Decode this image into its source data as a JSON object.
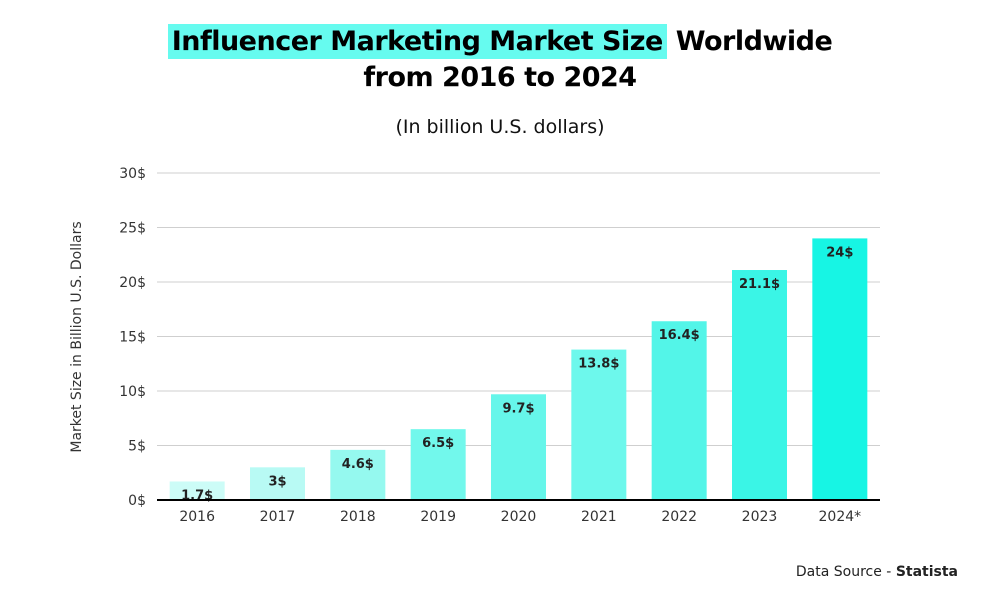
{
  "title_highlight": "Influencer Marketing Market Size",
  "title_rest": "Worldwide",
  "title_line2": "from 2016 to 2024",
  "subtitle": "(In billion U.S. dollars)",
  "source_label": "Data Source - ",
  "source_name": "Statista",
  "colors": {
    "highlight": "#66fbef",
    "bars": [
      "#ccfcf7",
      "#b8faf4",
      "#95f9ef",
      "#72f8ec",
      "#66f6ea",
      "#6df8ec",
      "#53f5e8",
      "#3af5e6",
      "#17f5e4"
    ]
  },
  "chart_data": {
    "type": "bar",
    "categories": [
      "2016",
      "2017",
      "2018",
      "2019",
      "2020",
      "2021",
      "2022",
      "2023",
      "2024*"
    ],
    "values": [
      1.7,
      3,
      4.6,
      6.5,
      9.7,
      13.8,
      16.4,
      21.1,
      24
    ],
    "data_labels": [
      "1.7$",
      "3$",
      "4.6$",
      "6.5$",
      "9.7$",
      "13.8$",
      "16.4$",
      "21.1$",
      "24$"
    ],
    "ylabel": "Market Size in Billion U.S. Dollars",
    "xlabel": "",
    "ylim": [
      0,
      30
    ],
    "yticks": [
      "0$",
      "5$",
      "10$",
      "15$",
      "20$",
      "25$",
      "30$"
    ],
    "grid": true
  }
}
